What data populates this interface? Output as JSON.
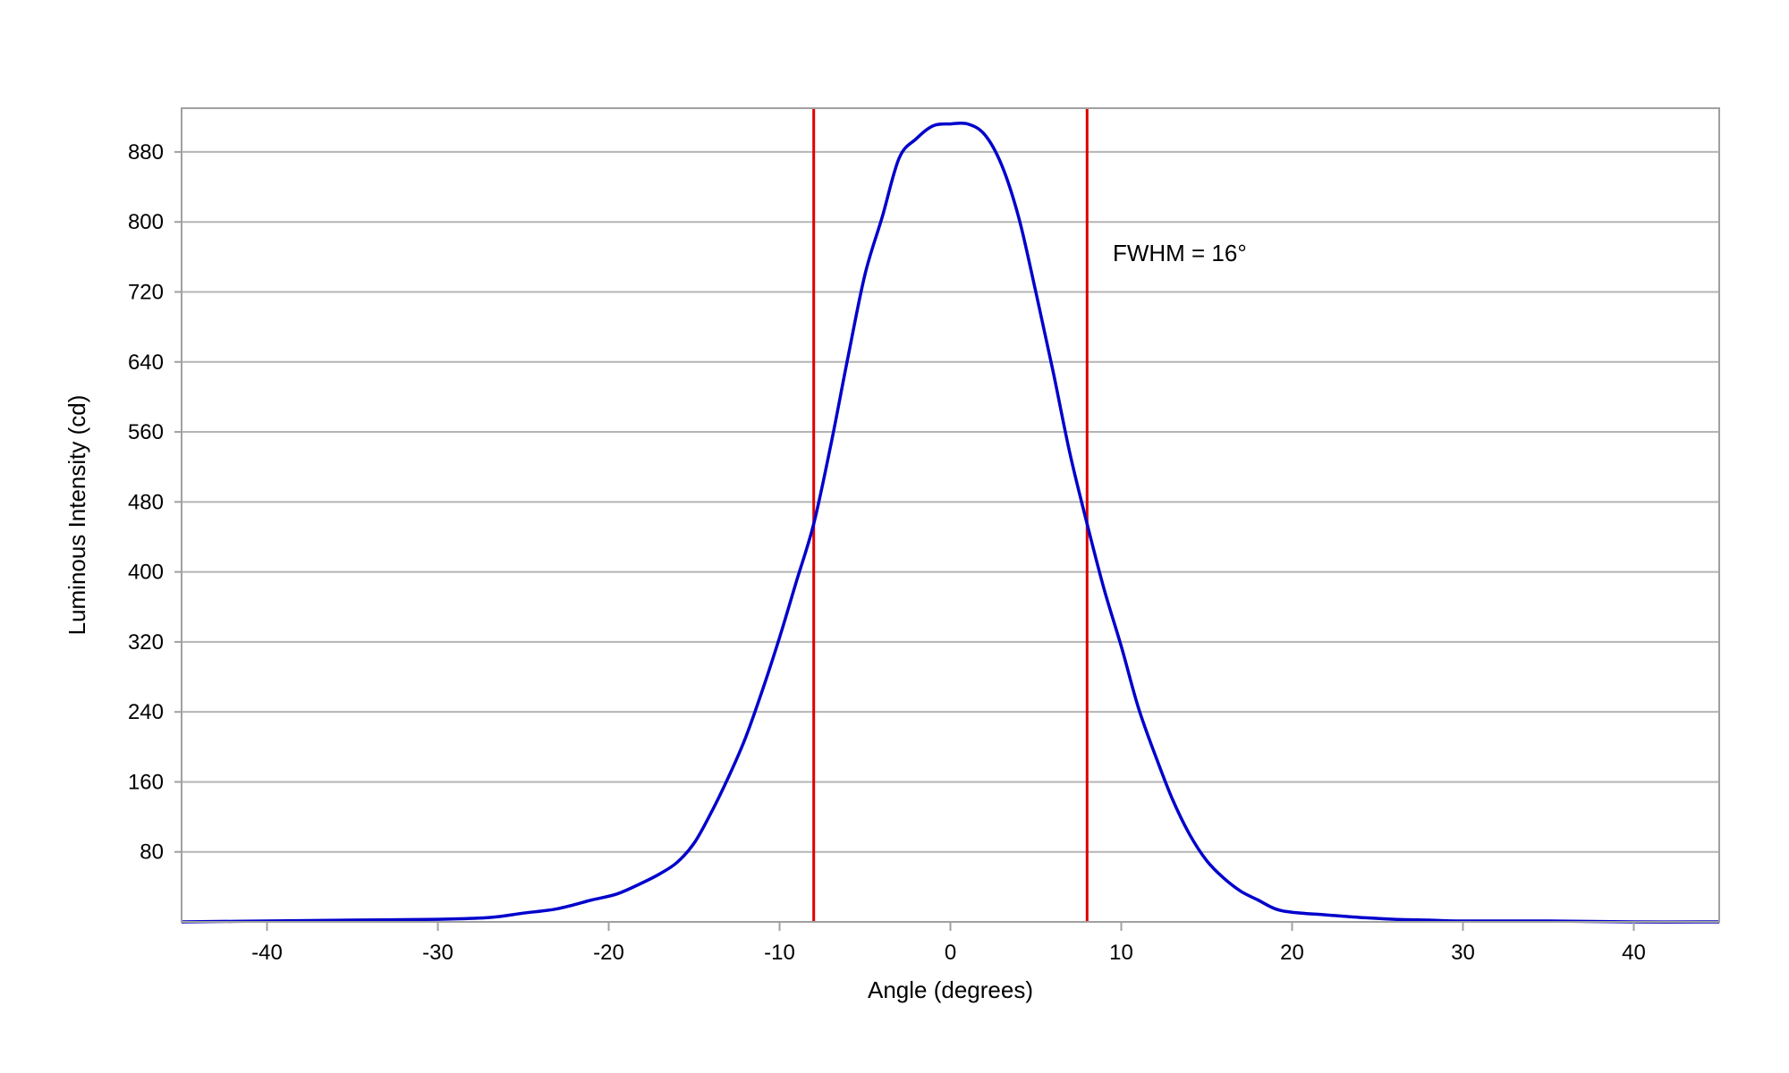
{
  "chart_data": {
    "type": "line",
    "title": "",
    "xlabel": "Angle (degrees)",
    "ylabel": "Luminous Intensity (cd)",
    "xlim": [
      -45,
      45
    ],
    "ylim": [
      0,
      930
    ],
    "grid": true,
    "x_ticks": [
      -40,
      -30,
      -20,
      -10,
      0,
      10,
      20,
      30,
      40
    ],
    "y_ticks": [
      80,
      160,
      240,
      320,
      400,
      480,
      560,
      640,
      720,
      800,
      880
    ],
    "colors": {
      "curve": "#0000cc",
      "markers": "#dd0000",
      "grid": "#b4b4b4",
      "frame": "#a0a0a0"
    },
    "series": [
      {
        "x": [
          -45,
          -40,
          -35,
          -30,
          -27,
          -25,
          -23,
          -21,
          -19.5,
          -18,
          -17,
          -16,
          -15,
          -14,
          -13,
          -12,
          -11,
          -10,
          -9,
          -8,
          -7,
          -6,
          -5,
          -4,
          -3,
          -2,
          -1,
          0,
          1,
          2,
          3,
          4,
          5,
          6,
          7,
          8,
          9,
          10,
          11,
          12,
          13,
          14,
          15,
          16,
          17,
          18,
          19,
          20,
          22,
          24,
          26,
          28,
          30,
          35,
          40,
          45
        ],
        "y": [
          0,
          1,
          2,
          3,
          5,
          10,
          15,
          25,
          32,
          45,
          55,
          68,
          90,
          125,
          165,
          210,
          265,
          325,
          390,
          455,
          545,
          645,
          740,
          805,
          873,
          895,
          910,
          912,
          912,
          900,
          865,
          805,
          720,
          630,
          535,
          455,
          380,
          315,
          245,
          190,
          140,
          100,
          70,
          50,
          35,
          25,
          15,
          11,
          8,
          5,
          3,
          2,
          1,
          1,
          0,
          0
        ]
      }
    ],
    "vertical_lines": [
      -8,
      8
    ],
    "annotations": [
      {
        "text": "FWHM = 16°",
        "x": 9.5,
        "y": 755
      }
    ]
  }
}
